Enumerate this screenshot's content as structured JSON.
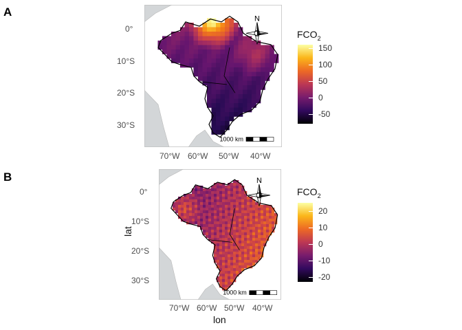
{
  "panels": [
    {
      "tag": "A",
      "legend": {
        "title_main": "FCO",
        "title_sub": "2",
        "ticks": [
          "150",
          "100",
          "50",
          "0",
          "-50"
        ],
        "values": [
          150,
          100,
          50,
          0,
          -50
        ],
        "min": -80,
        "max": 160
      },
      "yticks": [
        "0°",
        "10°S",
        "20°S",
        "30°S"
      ],
      "xticks": [
        "70°W",
        "60°W",
        "50°W",
        "40°W"
      ],
      "scale_text": "1000 km",
      "north": "N"
    },
    {
      "tag": "B",
      "legend": {
        "title_main": "FCO",
        "title_sub": "2",
        "ticks": [
          "20",
          "10",
          "0",
          "-10",
          "-20"
        ],
        "values": [
          20,
          10,
          0,
          -10,
          -20
        ],
        "min": -23,
        "max": 25
      },
      "yticks": [
        "0°",
        "10°S",
        "20°S",
        "30°S"
      ],
      "xticks": [
        "70°W",
        "60°W",
        "50°W",
        "40°W"
      ],
      "scale_text": "1000 km",
      "north": "N",
      "xlabel": "lon",
      "ylabel": "lat"
    }
  ],
  "colors": {
    "panel_bg": "#d3d6d8",
    "land": "#ffffff",
    "ocean": "#d3d6d8"
  },
  "chart_data": [
    {
      "type": "heatmap",
      "title": "",
      "xlabel": "",
      "ylabel": "",
      "legend_title": "FCO2",
      "range": [
        -80,
        160
      ],
      "colormap": "inferno",
      "xlim": [
        "75°W",
        "35°W"
      ],
      "ylim": [
        "37°S",
        "7°N"
      ],
      "notes": "Raster of FCO2 over Brazil; highest values in far north (around 0°,50°W), lowest in south-central Brazil."
    },
    {
      "type": "heatmap",
      "title": "",
      "xlabel": "lon",
      "ylabel": "lat",
      "legend_title": "FCO2",
      "range": [
        -23,
        25
      ],
      "colormap": "inferno",
      "xlim": [
        "75°W",
        "35°W"
      ],
      "ylim": [
        "37°S",
        "7°N"
      ],
      "notes": "Raster of FCO2 over Brazil; higher values in east/southeast, lower values in Amazon interior."
    }
  ]
}
